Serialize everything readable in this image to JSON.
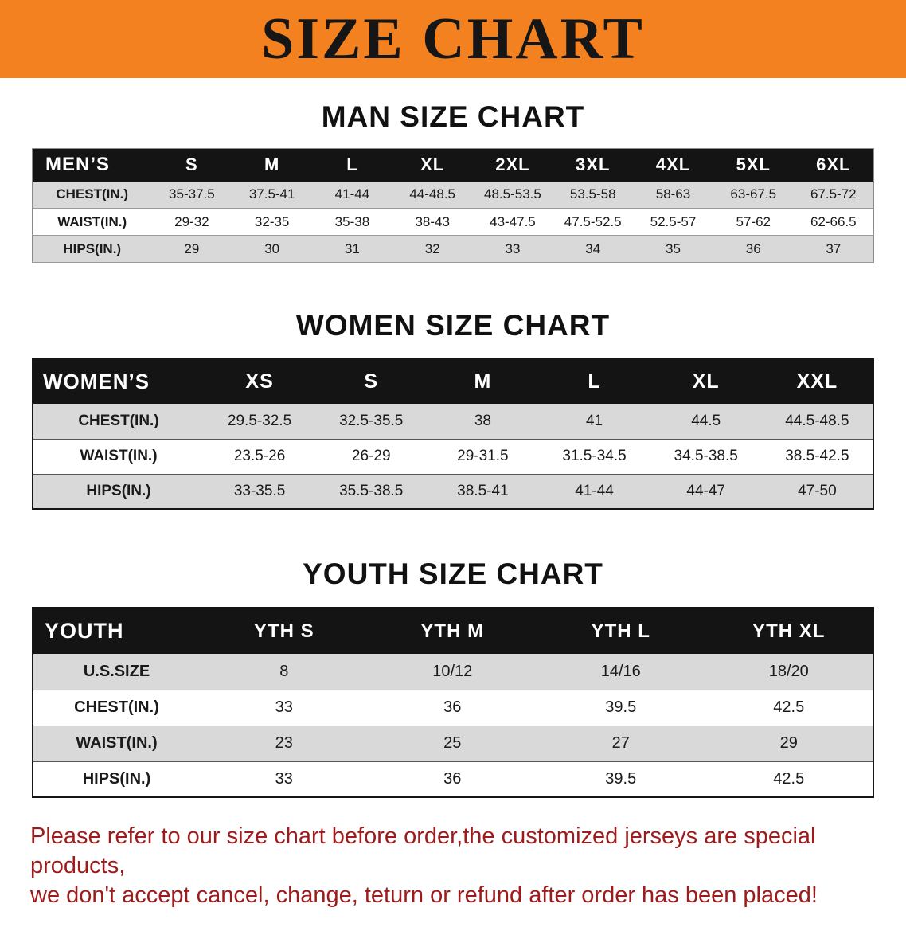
{
  "banner": {
    "title": "SIZE CHART"
  },
  "men": {
    "heading": "MAN SIZE CHART",
    "table": {
      "header": [
        "MEN’S",
        "S",
        "M",
        "L",
        "XL",
        "2XL",
        "3XL",
        "4XL",
        "5XL",
        "6XL"
      ],
      "rows": [
        [
          "CHEST(IN.)",
          "35-37.5",
          "37.5-41",
          "41-44",
          "44-48.5",
          "48.5-53.5",
          "53.5-58",
          "58-63",
          "63-67.5",
          "67.5-72"
        ],
        [
          "WAIST(IN.)",
          "29-32",
          "32-35",
          "35-38",
          "38-43",
          "43-47.5",
          "47.5-52.5",
          "52.5-57",
          "57-62",
          "62-66.5"
        ],
        [
          "HIPS(IN.)",
          "29",
          "30",
          "31",
          "32",
          "33",
          "34",
          "35",
          "36",
          "37"
        ]
      ]
    }
  },
  "women": {
    "heading": "WOMEN SIZE CHART",
    "table": {
      "header": [
        "WOMEN’S",
        "XS",
        "S",
        "M",
        "L",
        "XL",
        "XXL"
      ],
      "rows": [
        [
          "CHEST(IN.)",
          "29.5-32.5",
          "32.5-35.5",
          "38",
          "41",
          "44.5",
          "44.5-48.5"
        ],
        [
          "WAIST(IN.)",
          "23.5-26",
          "26-29",
          "29-31.5",
          "31.5-34.5",
          "34.5-38.5",
          "38.5-42.5"
        ],
        [
          "HIPS(IN.)",
          "33-35.5",
          "35.5-38.5",
          "38.5-41",
          "41-44",
          "44-47",
          "47-50"
        ]
      ]
    }
  },
  "youth": {
    "heading": "YOUTH SIZE CHART",
    "table": {
      "header": [
        "YOUTH",
        "YTH S",
        "YTH M",
        "YTH L",
        "YTH XL"
      ],
      "rows": [
        [
          "U.S.SIZE",
          "8",
          "10/12",
          "14/16",
          "18/20"
        ],
        [
          "CHEST(IN.)",
          "33",
          "36",
          "39.5",
          "42.5"
        ],
        [
          "WAIST(IN.)",
          "23",
          "25",
          "27",
          "29"
        ],
        [
          "HIPS(IN.)",
          "33",
          "36",
          "39.5",
          "42.5"
        ]
      ]
    }
  },
  "footer": {
    "lines": [
      "Please refer to our size chart before order,the customized jerseys are special products,",
      "we don't accept cancel, change, teturn or refund after order has been placed!"
    ]
  },
  "colors": {
    "banner_bg": "#f48120",
    "banner_text": "#161616",
    "table_header_bg": "#141414",
    "table_header_text": "#ffffff",
    "row_alt_bg": "#d9d9d9",
    "footer_text": "#9e1b1b"
  }
}
